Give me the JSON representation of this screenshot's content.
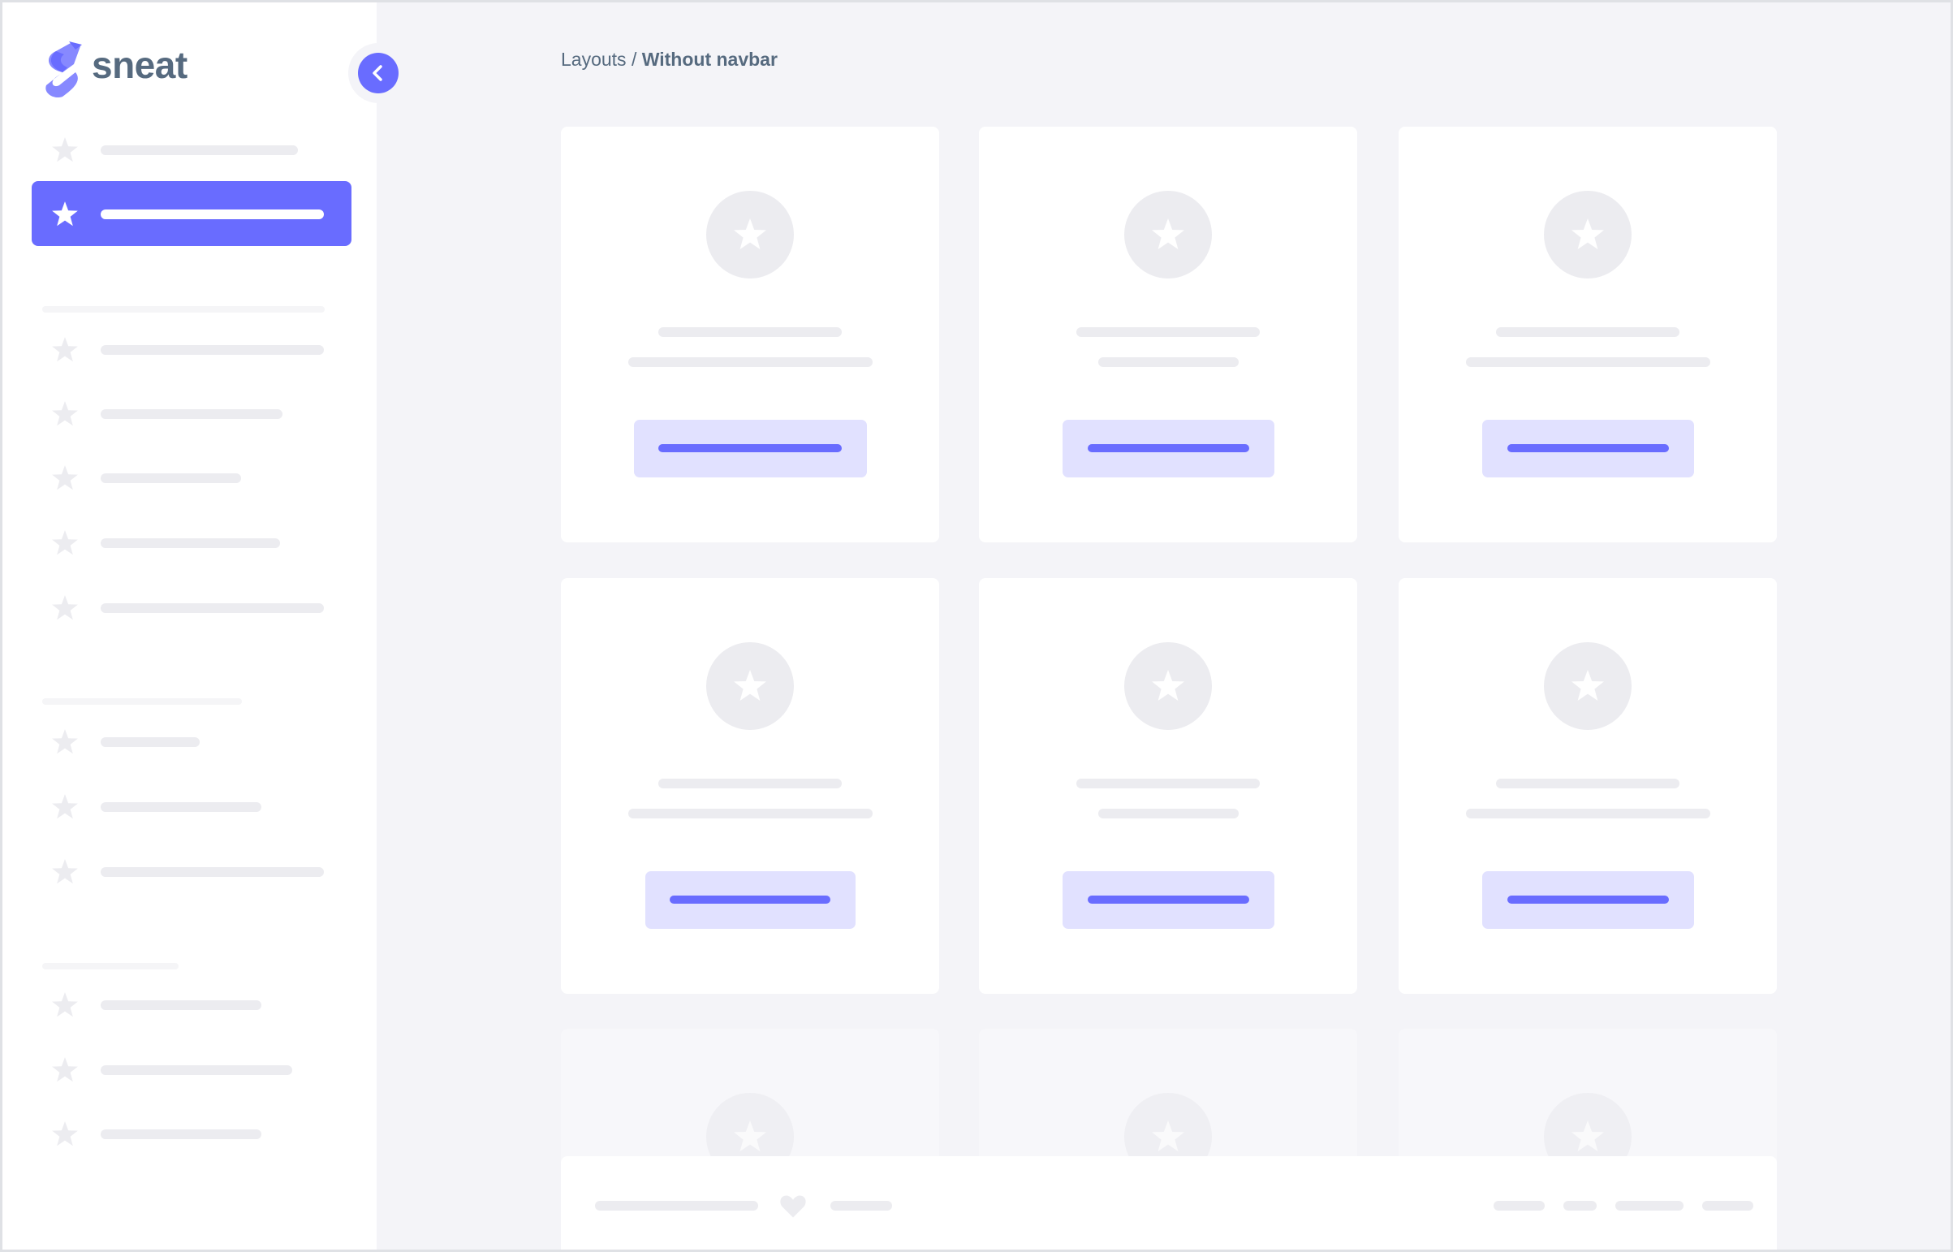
{
  "brand": {
    "name": "sneat",
    "color": "#696cff"
  },
  "breadcrumb": {
    "parent": "Layouts",
    "separator": " / ",
    "current": "Without navbar"
  },
  "sidebar": {
    "active_index": 1
  },
  "colors": {
    "primary": "#696cff",
    "primary_light": "#e1e1ff",
    "text": "#566a7f",
    "skeleton": "#ececf0",
    "background": "#f4f4f8"
  }
}
